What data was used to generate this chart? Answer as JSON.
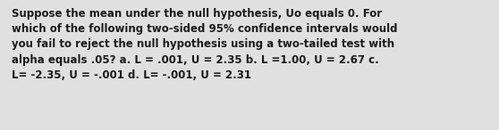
{
  "text": "Suppose the mean under the null hypothesis, Uo equals 0. For\nwhich of the following two-sided 95% confidence intervals would\nyou fail to reject the null hypothesis using a two-tailed test with\nalpha equals .05? a. L = .001, U = 2.35 b. L =1.00, U = 2.67 c.\nL= -2.35, U = -.001 d. L= -.001, U = 2.31",
  "background_color": "#e0e0e0",
  "text_color": "#1a1a1a",
  "font_size": 8.5,
  "fig_width": 5.58,
  "fig_height": 1.46,
  "dpi": 100
}
